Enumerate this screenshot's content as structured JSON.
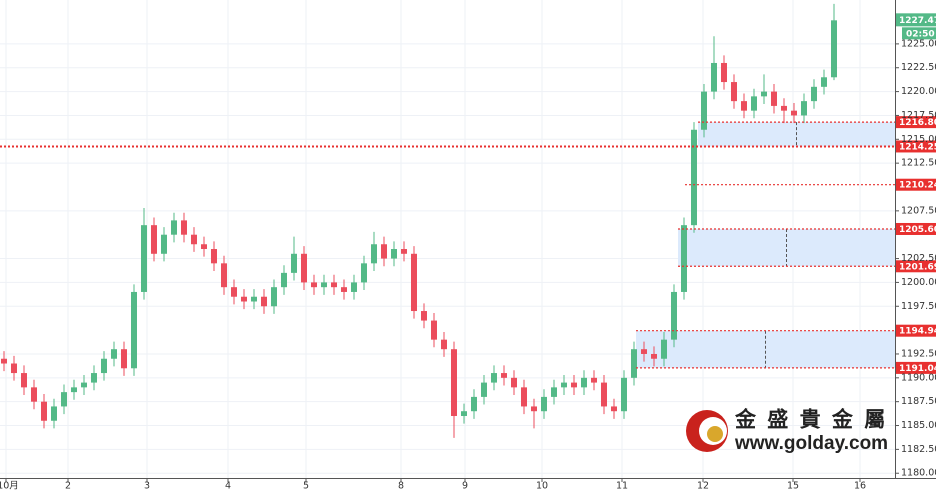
{
  "chart_data": {
    "type": "candlestick",
    "xlim": [
      -0.4,
      89.1
    ],
    "ylim": [
      1179.5,
      1229.6
    ],
    "xticks": [
      {
        "value": 0.2,
        "label": "10月"
      },
      {
        "value": 6.4,
        "label": "2"
      },
      {
        "value": 14.3,
        "label": "3"
      },
      {
        "value": 22.4,
        "label": "4"
      },
      {
        "value": 30.2,
        "label": "5"
      },
      {
        "value": 39.7,
        "label": "8"
      },
      {
        "value": 46.1,
        "label": "9"
      },
      {
        "value": 53.8,
        "label": "10"
      },
      {
        "value": 61.8,
        "label": "11"
      },
      {
        "value": 69.9,
        "label": "12"
      },
      {
        "value": 78.9,
        "label": "15"
      },
      {
        "value": 85.6,
        "label": "16"
      }
    ],
    "yticks": [
      {
        "value": 1180,
        "label": "1180.00"
      },
      {
        "value": 1182.5,
        "label": "1182.50"
      },
      {
        "value": 1185,
        "label": "1185.00"
      },
      {
        "value": 1187.5,
        "label": "1187.50"
      },
      {
        "value": 1190,
        "label": "1190.00"
      },
      {
        "value": 1192.5,
        "label": "1192.50"
      },
      {
        "value": 1197.5,
        "label": "1197.50"
      },
      {
        "value": 1200,
        "label": "1200.00"
      },
      {
        "value": 1202.5,
        "label": "1202.50"
      },
      {
        "value": 1207.5,
        "label": "1207.50"
      },
      {
        "value": 1212.5,
        "label": "1212.50"
      },
      {
        "value": 1215,
        "label": "1215.00"
      },
      {
        "value": 1217.5,
        "label": "1217.50"
      },
      {
        "value": 1220,
        "label": "1220.00"
      },
      {
        "value": 1222.5,
        "label": "1222.50"
      },
      {
        "value": 1225,
        "label": "1225.00"
      }
    ],
    "grid": true,
    "up_color": "#53b987",
    "down_color": "#eb4d5c",
    "level_color": "#e8302f",
    "zone_color": "#dceafc",
    "open": [
      1192,
      1191.5,
      1190.5,
      1189,
      1187.5,
      1185.5,
      1187,
      1188.5,
      1189,
      1189.5,
      1190.5,
      1192,
      1193,
      1191,
      1199,
      1206,
      1203,
      1205,
      1206.5,
      1205,
      1204,
      1203.5,
      1202,
      1199.5,
      1198.5,
      1198,
      1198.5,
      1197.5,
      1199.5,
      1201,
      1203,
      1200,
      1199.5,
      1200,
      1199.5,
      1199,
      1200,
      1202,
      1204,
      1202.5,
      1203.5,
      1203,
      1197,
      1196,
      1194,
      1193,
      1186,
      1186.5,
      1188,
      1189.5,
      1190.5,
      1190,
      1189,
      1187,
      1186.5,
      1188,
      1189,
      1189.5,
      1189,
      1190,
      1189.5,
      1187,
      1186.5,
      1190,
      1193,
      1192.5,
      1192,
      1194,
      1199,
      1206,
      1216,
      1220,
      1223,
      1221,
      1219,
      1218,
      1219.5,
      1220,
      1218.5,
      1218,
      1217.5,
      1219,
      1220.5,
      1221.5
    ],
    "high": [
      1192.8,
      1192.3,
      1191.3,
      1189.8,
      1188.3,
      1187.8,
      1189.3,
      1189.8,
      1190.3,
      1191.3,
      1192.8,
      1193.8,
      1193.8,
      1199.8,
      1207.8,
      1206.8,
      1205.8,
      1207.3,
      1207.3,
      1205.8,
      1204.8,
      1204.3,
      1202.8,
      1200.3,
      1199.3,
      1199.3,
      1199.3,
      1200.3,
      1201.8,
      1204.8,
      1203.8,
      1200.8,
      1200.8,
      1200.8,
      1200.3,
      1200.8,
      1202.8,
      1205.3,
      1204.8,
      1204.3,
      1204.3,
      1203.8,
      1197.8,
      1196.8,
      1194.8,
      1193.8,
      1187.3,
      1188.8,
      1190.3,
      1191.3,
      1191.3,
      1190.8,
      1189.8,
      1187.8,
      1188.8,
      1189.8,
      1190.3,
      1190.3,
      1190.8,
      1190.8,
      1190.3,
      1187.8,
      1190.8,
      1193.8,
      1193.8,
      1193.3,
      1194.8,
      1199.8,
      1206.8,
      1216.8,
      1220.8,
      1225.8,
      1223.8,
      1221.8,
      1219.8,
      1220.3,
      1221.8,
      1220.8,
      1219.3,
      1218.8,
      1219.8,
      1221.3,
      1222.3,
      1229.2
    ],
    "low": [
      1190.7,
      1189.7,
      1188.2,
      1186.7,
      1184.7,
      1184.7,
      1186.2,
      1187.7,
      1188.2,
      1188.7,
      1189.7,
      1191.2,
      1190.2,
      1190.2,
      1198.2,
      1202.2,
      1202.2,
      1204.2,
      1204.2,
      1203.2,
      1202.7,
      1201.2,
      1198.7,
      1197.7,
      1197.2,
      1197.2,
      1196.7,
      1196.7,
      1198.7,
      1200.2,
      1199.2,
      1198.7,
      1198.7,
      1198.7,
      1198.2,
      1198.2,
      1199.2,
      1201.2,
      1201.7,
      1201.7,
      1202.2,
      1196.2,
      1195.2,
      1193.2,
      1192.2,
      1183.7,
      1185.2,
      1185.7,
      1187.2,
      1188.7,
      1189.2,
      1188.2,
      1186.2,
      1184.7,
      1185.7,
      1187.2,
      1188.2,
      1188.2,
      1188.2,
      1188.7,
      1186.2,
      1185.7,
      1185.7,
      1189.2,
      1191.7,
      1191.2,
      1191.2,
      1193.2,
      1198.2,
      1205.2,
      1215.2,
      1219.2,
      1220.2,
      1218.2,
      1217.2,
      1217.2,
      1218.7,
      1217.7,
      1216.7,
      1216.7,
      1216.7,
      1218.2,
      1219.7,
      1221.2
    ],
    "close": [
      1191.5,
      1190.5,
      1189,
      1187.5,
      1185.5,
      1187,
      1188.5,
      1189,
      1189.5,
      1190.5,
      1192,
      1193,
      1191,
      1199,
      1206,
      1203,
      1205,
      1206.5,
      1205,
      1204,
      1203.5,
      1202,
      1199.5,
      1198.5,
      1198,
      1198.5,
      1197.5,
      1199.5,
      1201,
      1203,
      1200,
      1199.5,
      1200,
      1199.5,
      1199,
      1200,
      1202,
      1204,
      1202.5,
      1203.5,
      1203,
      1197,
      1196,
      1194,
      1193,
      1186,
      1186.5,
      1188,
      1189.5,
      1190.5,
      1190,
      1189,
      1187,
      1186.5,
      1188,
      1189,
      1189.5,
      1189,
      1190,
      1189.5,
      1187,
      1186.5,
      1190,
      1193,
      1192.5,
      1192,
      1194,
      1199,
      1206,
      1216,
      1220,
      1223,
      1221,
      1219,
      1218,
      1219.5,
      1220,
      1218.5,
      1218,
      1217.5,
      1219,
      1220.5,
      1221.5,
      1227.47
    ],
    "levels": [
      {
        "value": 1216.8,
        "label": "1216.80",
        "x0": 69.4
      },
      {
        "value": 1214.25,
        "label": "1214.25",
        "x0": -0.4
      },
      {
        "value": 1210.24,
        "label": "1210.24",
        "x0": 68.1
      },
      {
        "value": 1205.6,
        "label": "1205.60",
        "x0": 67.4
      },
      {
        "value": 1201.69,
        "label": "1201.69",
        "x0": 67.4
      },
      {
        "value": 1194.94,
        "label": "1194.94",
        "x0": 63.2
      },
      {
        "value": 1191.04,
        "label": "1191.04",
        "x0": 63.2
      }
    ],
    "zones": [
      [
        0,
        1
      ],
      [
        3,
        4
      ],
      [
        5,
        6
      ]
    ],
    "last": {
      "value": 1227.47,
      "label": "1227.47",
      "time": "02:50"
    }
  },
  "watermark": {
    "name": "金 盛 貴 金 屬",
    "url": "www.golday.com"
  }
}
